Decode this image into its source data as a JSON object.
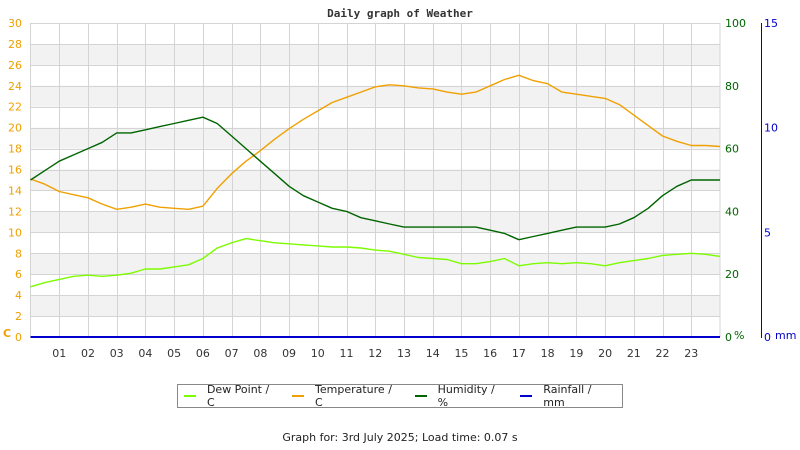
{
  "chart_data": {
    "type": "line",
    "title": "Daily graph of Weather",
    "xlabel": "",
    "x_ticks": [
      "01",
      "02",
      "03",
      "04",
      "05",
      "06",
      "07",
      "08",
      "09",
      "10",
      "11",
      "12",
      "13",
      "14",
      "15",
      "16",
      "17",
      "18",
      "19",
      "20",
      "21",
      "22",
      "23"
    ],
    "xlim": [
      0,
      24
    ],
    "axes": {
      "left": {
        "unit": "C",
        "ticks": [
          0,
          2,
          4,
          6,
          8,
          10,
          12,
          14,
          16,
          18,
          20,
          22,
          24,
          26,
          28,
          30
        ],
        "ylim": [
          0,
          30
        ],
        "color": "#f0a000"
      },
      "humidity": {
        "unit": "%",
        "ticks": [
          0,
          20,
          40,
          60,
          80,
          100
        ],
        "ylim": [
          0,
          100
        ],
        "color": "#006400"
      },
      "rainfall": {
        "unit": "mm",
        "ticks": [
          0,
          5,
          10,
          15
        ],
        "ylim": [
          0,
          15
        ],
        "color": "#0000cc"
      }
    },
    "grid": true,
    "legend_position": "bottom",
    "series": [
      {
        "name": "Dew Point / C",
        "axis": "left",
        "color": "#7cfc00",
        "x": [
          0,
          0.5,
          1,
          1.5,
          2,
          2.5,
          3,
          3.5,
          4,
          4.5,
          5,
          5.5,
          6,
          6.5,
          7,
          7.5,
          8,
          8.5,
          9,
          9.5,
          10,
          10.5,
          11,
          11.5,
          12,
          12.5,
          13,
          13.5,
          14,
          14.5,
          15,
          15.5,
          16,
          16.5,
          17,
          17.5,
          18,
          18.5,
          19,
          19.5,
          20,
          20.5,
          21,
          21.5,
          22,
          22.5,
          23,
          23.5,
          24
        ],
        "values": [
          4.8,
          5.2,
          5.5,
          5.8,
          5.9,
          5.8,
          5.9,
          6.1,
          6.5,
          6.5,
          6.7,
          6.9,
          7.5,
          8.5,
          9.0,
          9.4,
          9.2,
          9.0,
          8.9,
          8.8,
          8.7,
          8.6,
          8.6,
          8.5,
          8.3,
          8.2,
          7.9,
          7.6,
          7.5,
          7.4,
          7.0,
          7.0,
          7.2,
          7.5,
          6.8,
          7.0,
          7.1,
          7.0,
          7.1,
          7.0,
          6.8,
          7.1,
          7.3,
          7.5,
          7.8,
          7.9,
          8.0,
          7.9,
          7.7
        ]
      },
      {
        "name": "Temperature / C",
        "axis": "left",
        "color": "#f0a000",
        "x": [
          0,
          0.5,
          1,
          1.5,
          2,
          2.5,
          3,
          3.5,
          4,
          4.5,
          5,
          5.5,
          6,
          6.5,
          7,
          7.5,
          8,
          8.5,
          9,
          9.5,
          10,
          10.5,
          11,
          11.5,
          12,
          12.5,
          13,
          13.5,
          14,
          14.5,
          15,
          15.5,
          16,
          16.5,
          17,
          17.5,
          18,
          18.5,
          19,
          19.5,
          20,
          20.5,
          21,
          21.5,
          22,
          22.5,
          23,
          23.5,
          24
        ],
        "values": [
          15.1,
          14.6,
          13.9,
          13.6,
          13.3,
          12.7,
          12.2,
          12.4,
          12.7,
          12.4,
          12.3,
          12.2,
          12.5,
          14.2,
          15.6,
          16.8,
          17.8,
          18.9,
          19.9,
          20.8,
          21.6,
          22.4,
          22.9,
          23.4,
          23.9,
          24.1,
          24.0,
          23.8,
          23.7,
          23.4,
          23.2,
          23.4,
          24.0,
          24.6,
          25.0,
          24.5,
          24.2,
          23.4,
          23.2,
          23.0,
          22.8,
          22.2,
          21.2,
          20.2,
          19.2,
          18.7,
          18.3,
          18.3,
          18.2
        ]
      },
      {
        "name": "Humidity / %",
        "axis": "humidity",
        "color": "#006400",
        "x": [
          0,
          0.5,
          1,
          1.5,
          2,
          2.5,
          3,
          3.5,
          4,
          4.5,
          5,
          5.5,
          6,
          6.5,
          7,
          7.5,
          8,
          8.5,
          9,
          9.5,
          10,
          10.5,
          11,
          11.5,
          12,
          12.5,
          13,
          13.5,
          14,
          14.5,
          15,
          15.5,
          16,
          16.5,
          17,
          17.5,
          18,
          18.5,
          19,
          19.5,
          20,
          20.5,
          21,
          21.5,
          22,
          22.5,
          23,
          23.5,
          24
        ],
        "values": [
          50,
          53,
          56,
          58,
          60,
          62,
          65,
          65,
          66,
          67,
          68,
          69,
          70,
          68,
          64,
          60,
          56,
          52,
          48,
          45,
          43,
          41,
          40,
          38,
          37,
          36,
          35,
          35,
          35,
          35,
          35,
          35,
          34,
          33,
          31,
          32,
          33,
          34,
          35,
          35,
          35,
          36,
          38,
          41,
          45,
          48,
          50,
          50,
          50
        ]
      },
      {
        "name": "Rainfall / mm",
        "axis": "rainfall",
        "color": "#0000cc",
        "x": [
          0,
          24
        ],
        "values": [
          0,
          0
        ]
      }
    ]
  },
  "legend": [
    {
      "label": "Dew Point / C",
      "color": "#7cfc00"
    },
    {
      "label": "Temperature / C",
      "color": "#f0a000"
    },
    {
      "label": "Humidity / %",
      "color": "#006400"
    },
    {
      "label": "Rainfall / mm",
      "color": "#0000cc"
    }
  ],
  "footer": "Graph for: 3rd July 2025; Load time: 0.07 s"
}
